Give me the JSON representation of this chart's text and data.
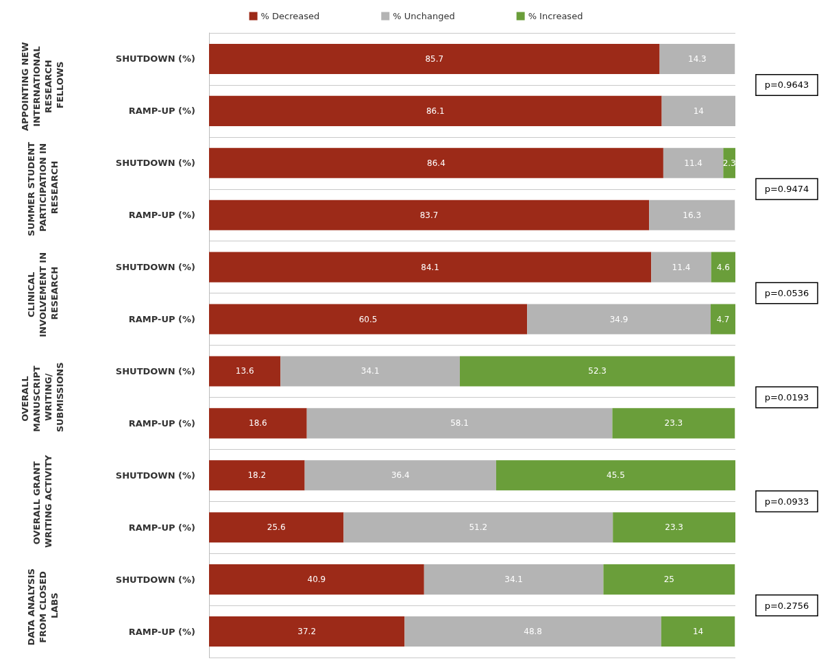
{
  "chart_data": {
    "type": "bar",
    "orientation": "horizontal",
    "stacked": true,
    "data_labels": true,
    "legend": "top",
    "grid": "y",
    "tick_labels": "y",
    "categories": [
      "SHUTDOWN (%)",
      "RAMP-UP (%)",
      "SHUTDOWN (%)",
      "RAMP-UP (%)",
      "SHUTDOWN (%)",
      "RAMP-UP (%)",
      "SHUTDOWN (%)",
      "RAMP-UP (%)",
      "SHUTDOWN (%)",
      "RAMP-UP (%)",
      "SHUTDOWN (%)",
      "RAMP-UP (%)"
    ],
    "xlim": [
      0,
      100.1
    ],
    "series": [
      {
        "name": "% Decreased",
        "color": "#9c2a18",
        "values": [
          85.7,
          86.1,
          86.4,
          83.7,
          84.1,
          60.5,
          13.6,
          18.6,
          18.2,
          25.6,
          40.9,
          37.2
        ]
      },
      {
        "name": "% Unchanged",
        "color": "#b4b4b4",
        "values": [
          14.3,
          14,
          11.4,
          16.3,
          11.4,
          34.9,
          34.1,
          58.1,
          36.4,
          51.2,
          34.1,
          48.8
        ]
      },
      {
        "name": "% Increased",
        "color": "#6a9e3a",
        "values": [
          null,
          null,
          2.3,
          null,
          4.6,
          4.7,
          52.3,
          23.3,
          45.5,
          23.3,
          25,
          14
        ]
      }
    ],
    "annotations": [
      "APPOINTING NEW INTERNATIONAL RESEARCH FELLOWS",
      "SUMMER STUDENT PARTICIPATION IN RESEARCH",
      "CLINICAL INVOLVEMENT IN RESEARCH",
      "OVERALL MANUSCRIPT WRITING/SUBMISSIONS",
      "OVERALL GRANT WRITING ACTIVITY",
      "DATA ANALYSIS FROM CLOSED LABS",
      "p=0.9643",
      "p=0.9474",
      "p=0.0536",
      "p=0.0193",
      "p=0.0933",
      "p=0.2756"
    ]
  }
}
